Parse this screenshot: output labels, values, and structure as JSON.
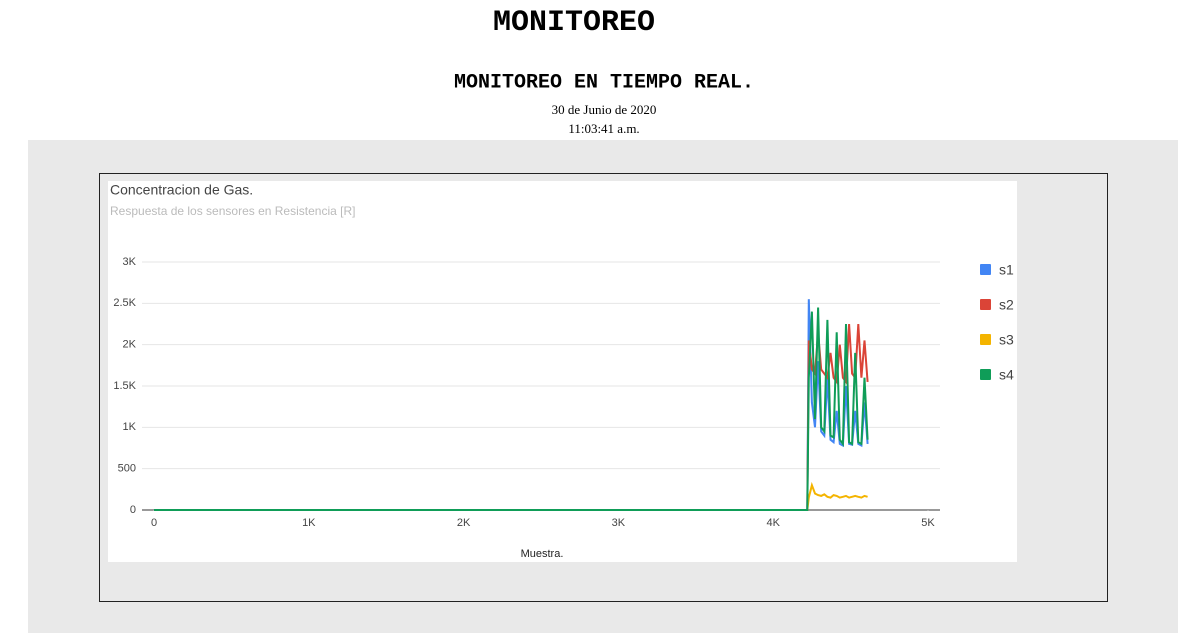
{
  "header": {
    "title": "MONITOREO",
    "subtitle": "MONITOREO EN TIEMPO REAL.",
    "date": "30 de Junio de 2020",
    "time": "11:03:41 a.m."
  },
  "chart_data": {
    "type": "line",
    "title": "Concentracion de Gas.",
    "subtitle": "Respuesta de los sensores en Resistencia [R]",
    "x_label": "Muestra.",
    "x": [
      0,
      4220,
      4230,
      4250,
      4270,
      4290,
      4310,
      4330,
      4350,
      4370,
      4390,
      4410,
      4430,
      4450,
      4470,
      4490,
      4510,
      4530,
      4550,
      4570,
      4590,
      4610
    ],
    "series": [
      {
        "name": "s1",
        "color": "#4285f4",
        "values": [
          0,
          0,
          2550,
          1300,
          1000,
          1800,
          950,
          900,
          1600,
          850,
          820,
          1200,
          800,
          780,
          1500,
          800,
          790,
          1200,
          800,
          780,
          1300,
          800
        ]
      },
      {
        "name": "s2",
        "color": "#db4437",
        "values": [
          0,
          0,
          2050,
          1700,
          1650,
          2150,
          1700,
          1650,
          1600,
          1900,
          1600,
          1550,
          2000,
          1600,
          1550,
          2250,
          1650,
          1600,
          2250,
          1600,
          2050,
          1550
        ]
      },
      {
        "name": "s3",
        "color": "#f4b400",
        "values": [
          0,
          0,
          150,
          300,
          200,
          180,
          170,
          190,
          160,
          150,
          180,
          170,
          150,
          160,
          170,
          150,
          160,
          170,
          160,
          150,
          170,
          160
        ]
      },
      {
        "name": "s4",
        "color": "#0f9d58",
        "values": [
          0,
          0,
          1600,
          2400,
          1100,
          2450,
          1000,
          950,
          2300,
          900,
          880,
          2150,
          850,
          800,
          2250,
          820,
          800,
          1900,
          820,
          800,
          1600,
          850
        ]
      }
    ],
    "xlim": [
      0,
      5000
    ],
    "xticks": [
      0,
      {
        "value": 1000,
        "label": "1K"
      },
      {
        "value": 2000,
        "label": "2K"
      },
      {
        "value": 3000,
        "label": "3K"
      },
      {
        "value": 4000,
        "label": "4K"
      },
      {
        "value": 5000,
        "label": "5K"
      }
    ],
    "ylim": [
      0,
      3000
    ],
    "yticks": [
      0,
      500,
      {
        "value": 1000,
        "label": "1K"
      },
      {
        "value": 1500,
        "label": "1.5K"
      },
      {
        "value": 2000,
        "label": "2K"
      },
      {
        "value": 2500,
        "label": "2.5K"
      },
      {
        "value": 3000,
        "label": "3K"
      }
    ],
    "grid": true,
    "legend": "right"
  }
}
